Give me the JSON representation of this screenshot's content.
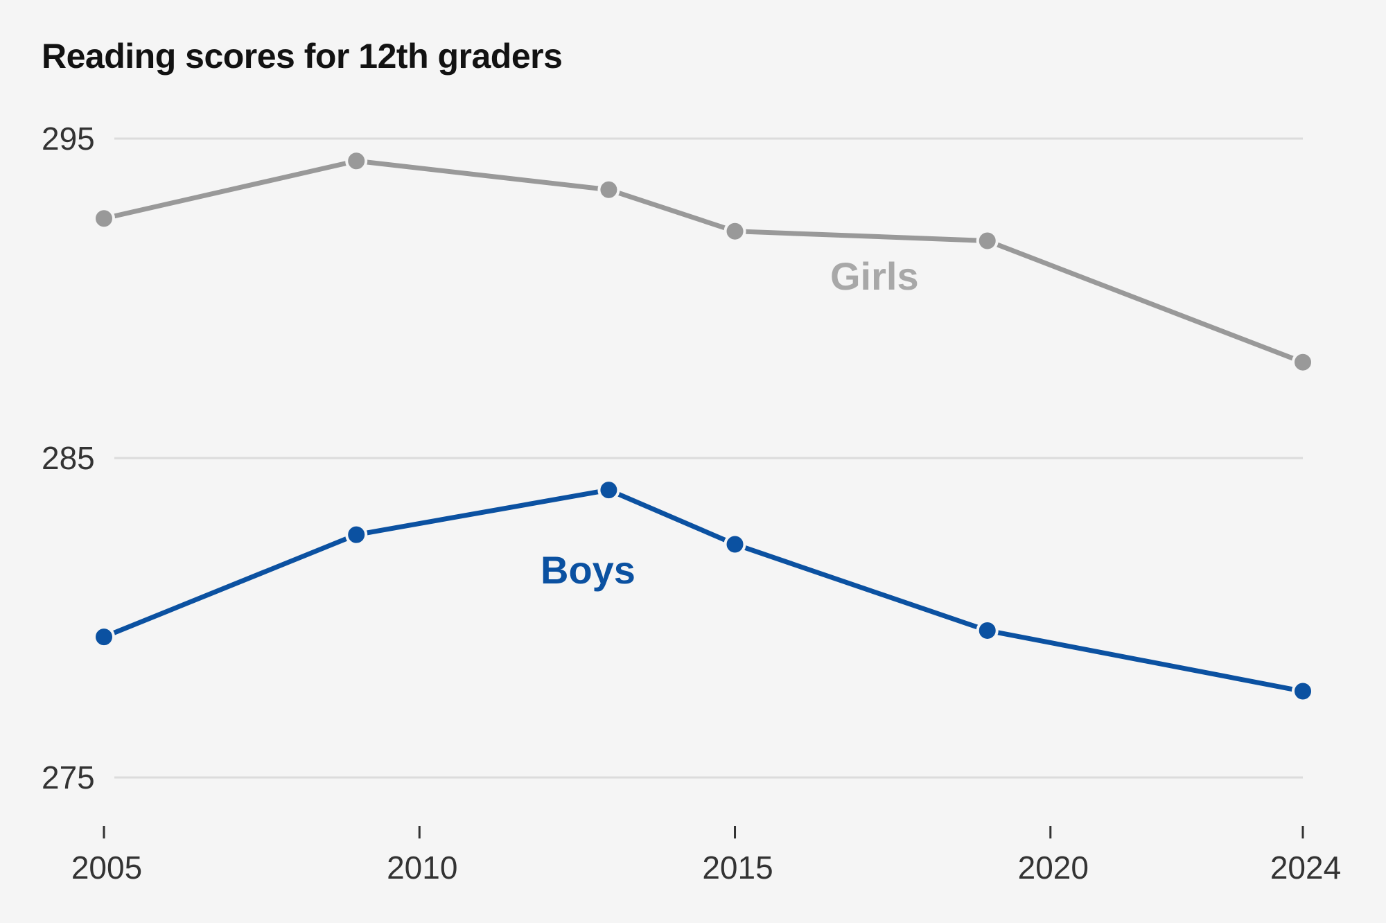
{
  "chart_data": {
    "type": "line",
    "title": "Reading scores for 12th graders",
    "xlabel": "",
    "ylabel": "",
    "xlim": [
      2005,
      2024
    ],
    "ylim": [
      275,
      295
    ],
    "x_ticks": [
      2005,
      2010,
      2015,
      2020,
      2024
    ],
    "y_ticks": [
      295,
      285,
      275
    ],
    "grid": true,
    "series": [
      {
        "name": "Girls",
        "color": "#999999",
        "points": [
          [
            2005,
            292.5
          ],
          [
            2009,
            294.3
          ],
          [
            2013,
            293.4
          ],
          [
            2015,
            292.1
          ],
          [
            2019,
            291.8
          ],
          [
            2024,
            288.0
          ]
        ]
      },
      {
        "name": "Boys",
        "color": "#0b51a1",
        "points": [
          [
            2005,
            279.4
          ],
          [
            2009,
            282.6
          ],
          [
            2013,
            284.0
          ],
          [
            2015,
            282.3
          ],
          [
            2019,
            279.6
          ],
          [
            2024,
            277.7
          ]
        ]
      }
    ]
  }
}
